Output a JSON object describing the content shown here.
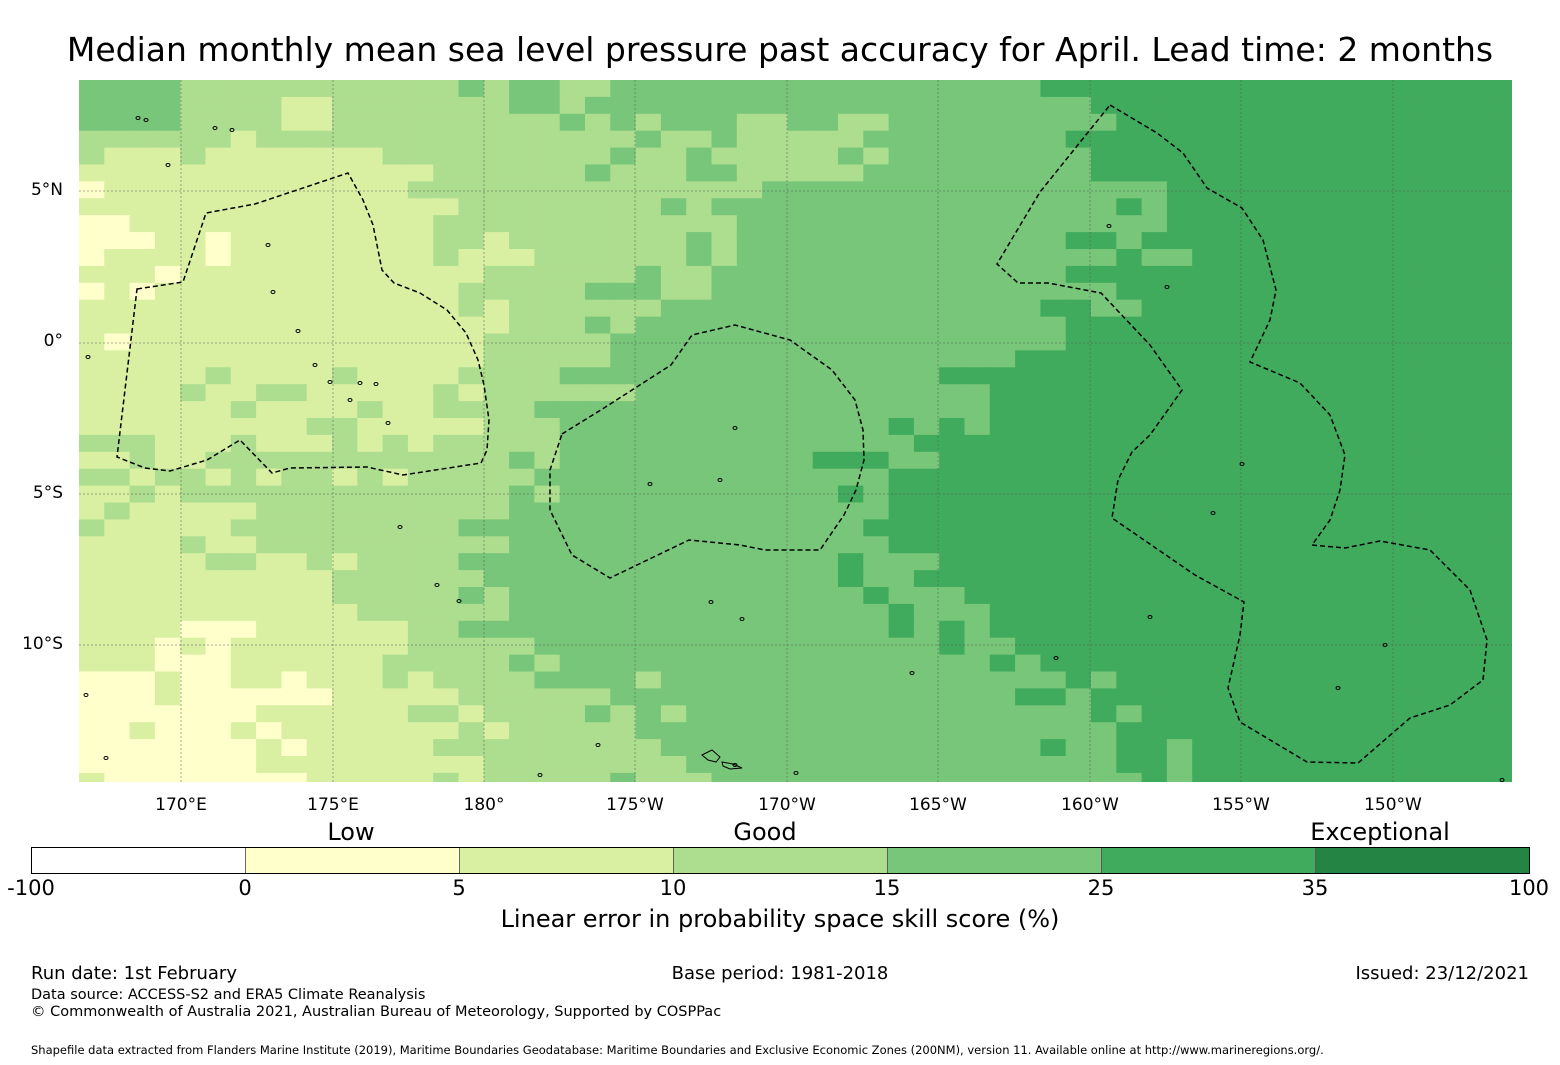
{
  "title": "Median monthly mean sea level pressure past accuracy for April. Lead time: 2 months",
  "map": {
    "lat_labels": [
      "5°N",
      "0°",
      "5°S",
      "10°S"
    ],
    "lon_labels": [
      "170°E",
      "175°E",
      "180°",
      "175°W",
      "170°W",
      "165°W",
      "160°W",
      "155°W",
      "150°W"
    ],
    "extent": {
      "lon_min": 166.6,
      "lon_max": 214.0,
      "lat_min": -14.7,
      "lat_max": 8.5
    }
  },
  "legend": {
    "categories": [
      "Low",
      "Good",
      "Exceptional"
    ],
    "ticks": [
      "-100",
      "0",
      "5",
      "10",
      "15",
      "25",
      "35",
      "100"
    ],
    "colors": [
      "#ffffff",
      "#ffffcc",
      "#d9f0a3",
      "#addd8e",
      "#78c679",
      "#41ab5d",
      "#238443"
    ],
    "title": "Linear error in probability space skill score (%)"
  },
  "footer": {
    "run_date": "Run date: 1st February",
    "base_period": "Base period: 1981-2018",
    "issued": "Issued: 23/12/2021",
    "data_source": "Data source: ACCESS-S2 and ERA5 Climate Reanalysis",
    "copyright": "© Commonwealth of Australia 2021, Australian Bureau of Meteorology, Supported by COSPPac",
    "shapefile": "Shapefile data extracted from Flanders Marine Institute (2019), Maritime Boundaries Geodatabase: Maritime Boundaries and Exclusive Economic Zones (200NM), version 11. Available online at http://www.marineregions.org/."
  }
}
